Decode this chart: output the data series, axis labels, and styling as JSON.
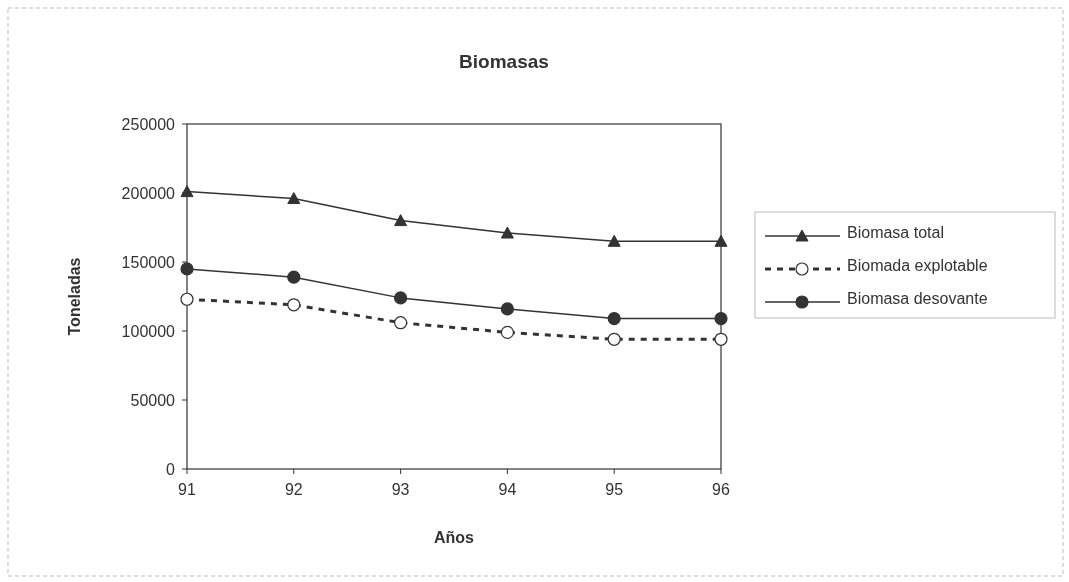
{
  "chart_data": {
    "type": "line",
    "title": "Biomasas",
    "xlabel": "Años",
    "ylabel": "Toneladas",
    "categories": [
      "91",
      "92",
      "93",
      "94",
      "95",
      "96"
    ],
    "ylim": [
      0,
      250000
    ],
    "yticks": [
      0,
      50000,
      100000,
      150000,
      200000,
      250000
    ],
    "grid": false,
    "legend": "right",
    "series": [
      {
        "name": "Biomasa total",
        "color": "#333333",
        "marker": "triangle",
        "line_style": "solid",
        "values": [
          201000,
          196000,
          180000,
          171000,
          165000,
          165000
        ]
      },
      {
        "name": "Biomada explotable",
        "color": "#333333",
        "marker": "circle",
        "line_style": "dashed",
        "values": [
          123000,
          119000,
          106000,
          99000,
          94000,
          94000
        ]
      },
      {
        "name": "Biomasa desovante",
        "color": "#333333",
        "marker": "circle",
        "line_style": "solid",
        "values": [
          145000,
          139000,
          124000,
          116000,
          109000,
          109000
        ]
      }
    ]
  }
}
